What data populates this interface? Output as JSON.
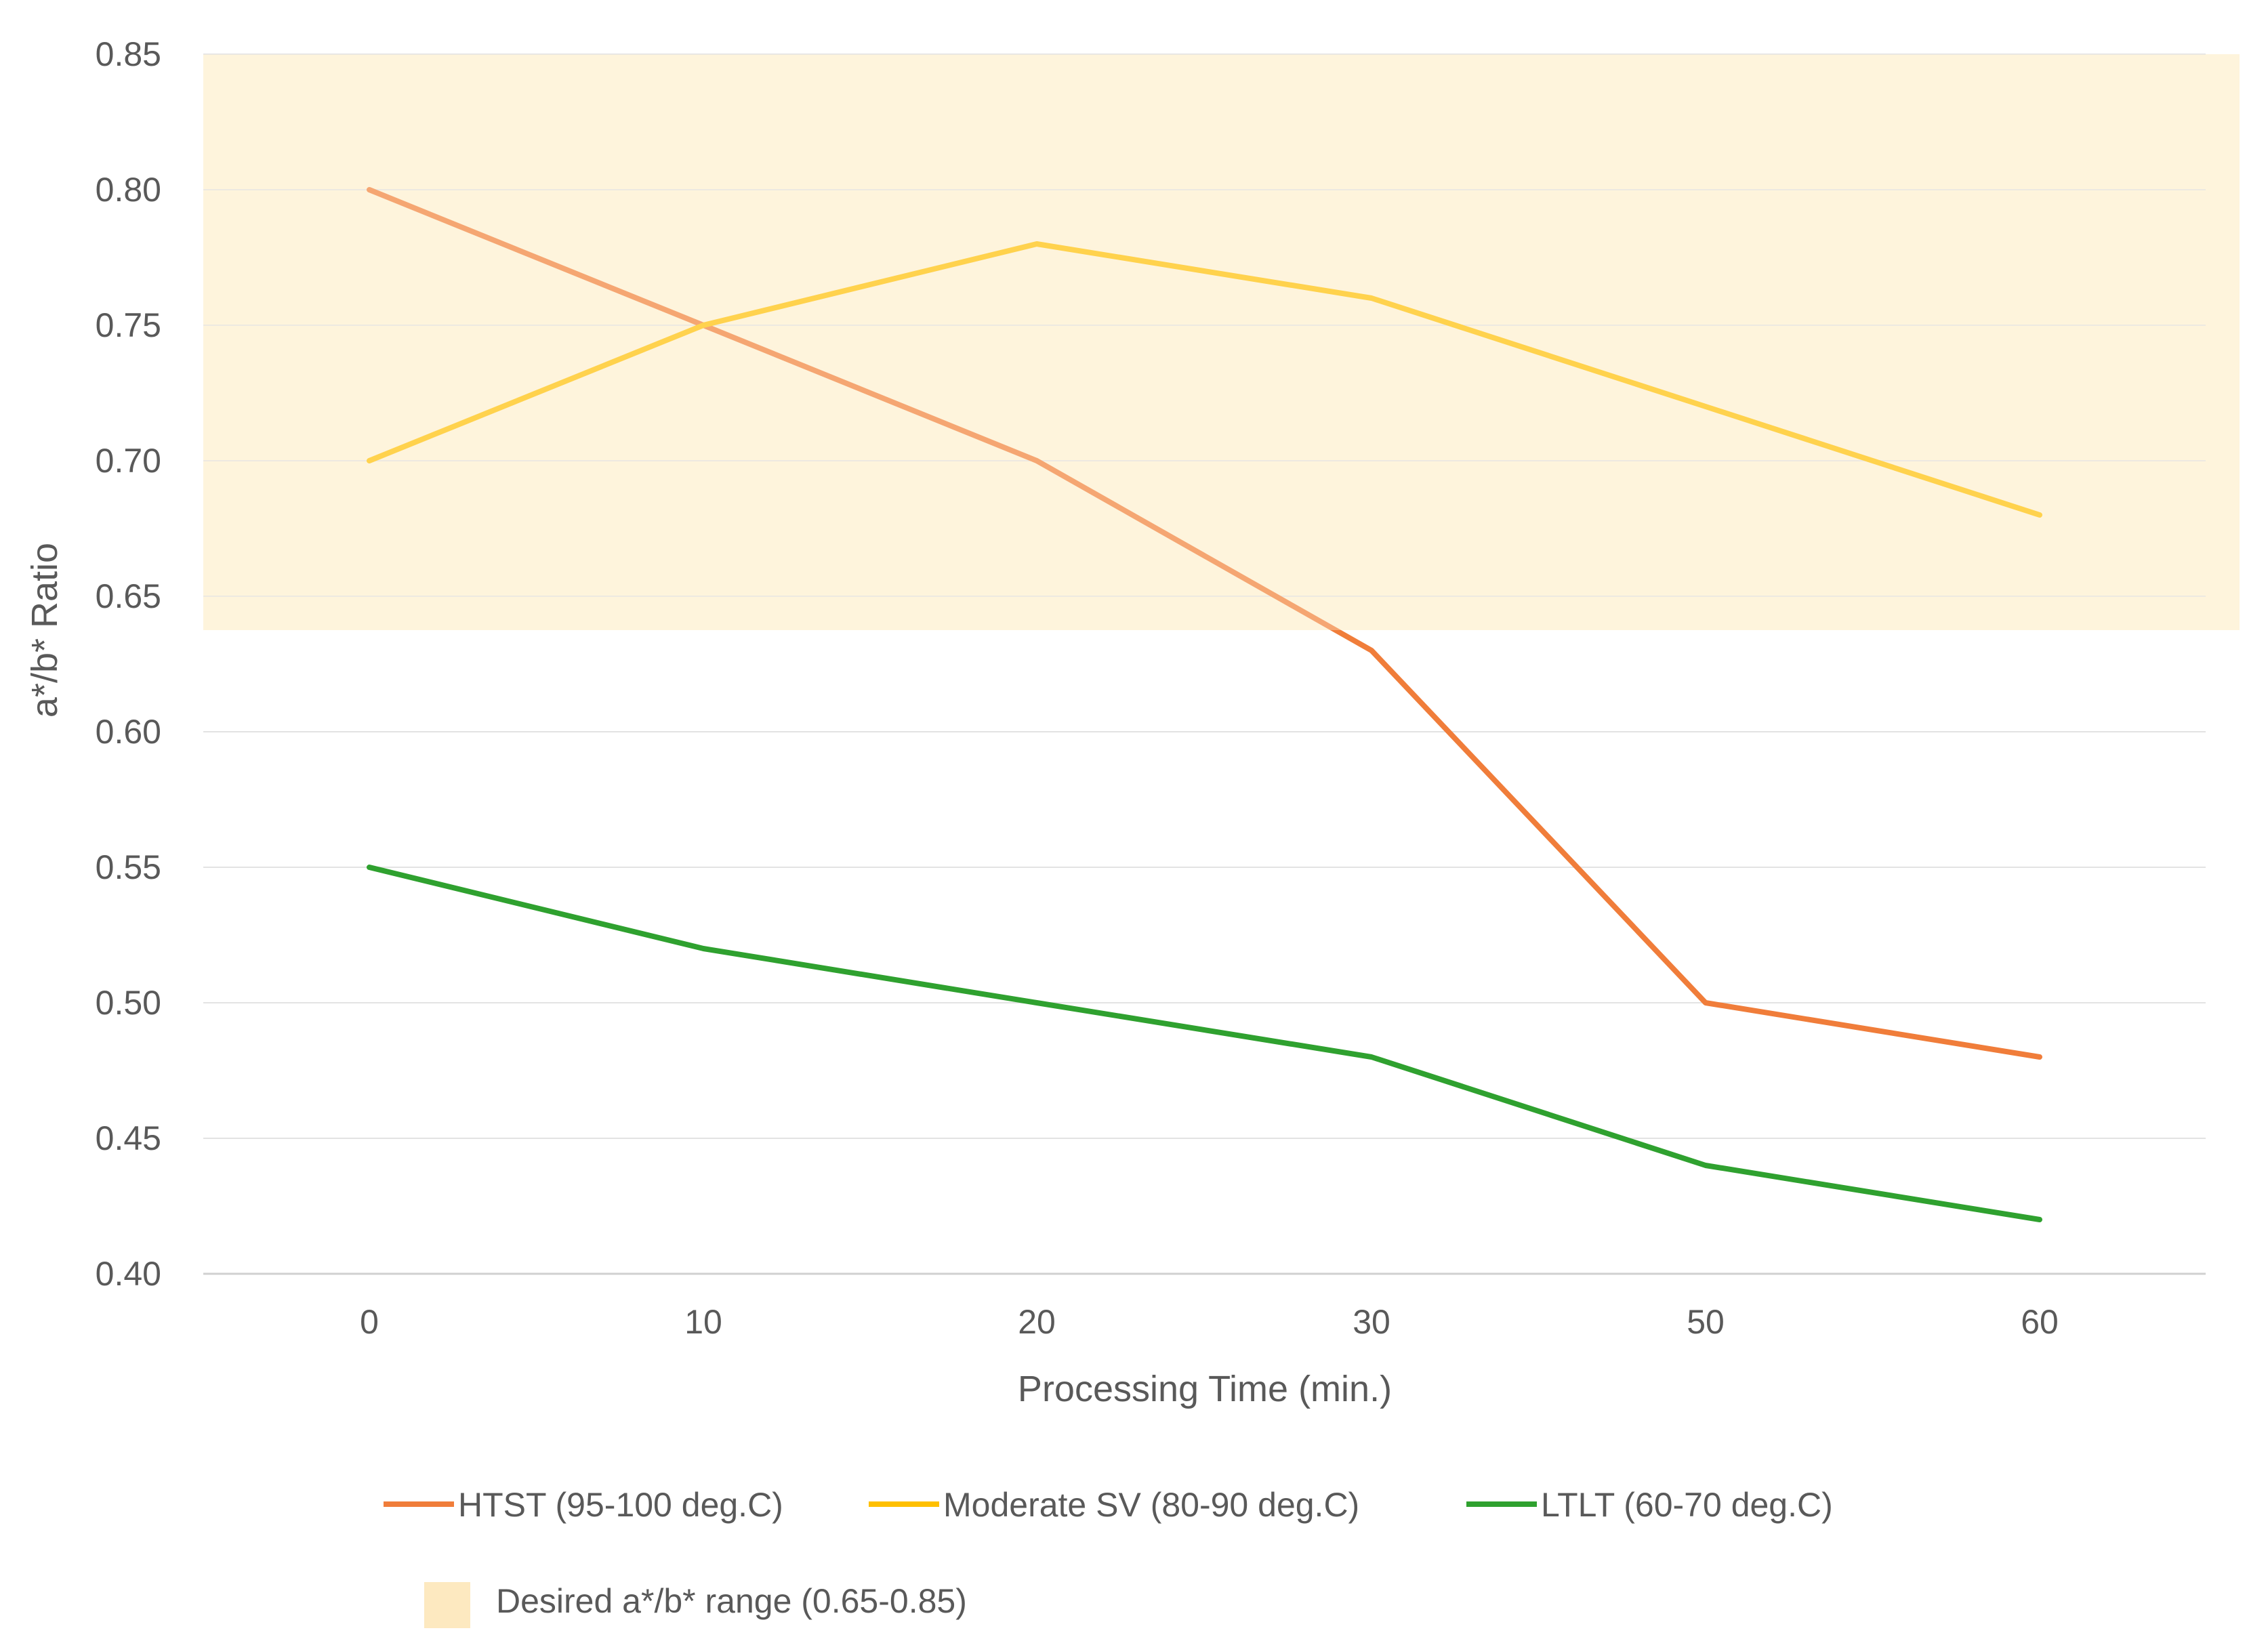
{
  "chart_data": {
    "type": "line",
    "title": "",
    "xlabel": "Processing Time (min.)",
    "ylabel": "a*/b* Ratio",
    "categories": [
      "0",
      "10",
      "20",
      "30",
      "50",
      "60"
    ],
    "ylim": [
      0.4,
      0.85
    ],
    "yticks": [
      "0.40",
      "0.45",
      "0.50",
      "0.55",
      "0.60",
      "0.65",
      "0.70",
      "0.75",
      "0.80",
      "0.85"
    ],
    "grid": true,
    "series": [
      {
        "name": "HTST (95-100 deg.C)",
        "color": "#F07D3A",
        "values": [
          0.8,
          0.75,
          0.7,
          0.63,
          0.5,
          0.48
        ]
      },
      {
        "name": "Moderate SV (80-90 deg.C)",
        "color": "#FFC000",
        "values": [
          0.7,
          0.75,
          0.78,
          0.76,
          0.72,
          0.68
        ]
      },
      {
        "name": "LTLT (60-70 deg.C)",
        "color": "#2FA12F",
        "values": [
          0.55,
          0.52,
          0.5,
          0.48,
          0.44,
          0.42
        ]
      }
    ],
    "band": {
      "label": "Desired a*/b* range (0.65-0.85)",
      "from": 0.65,
      "to": 0.85,
      "color": "#FEF4DC"
    },
    "legend_position": "bottom"
  }
}
